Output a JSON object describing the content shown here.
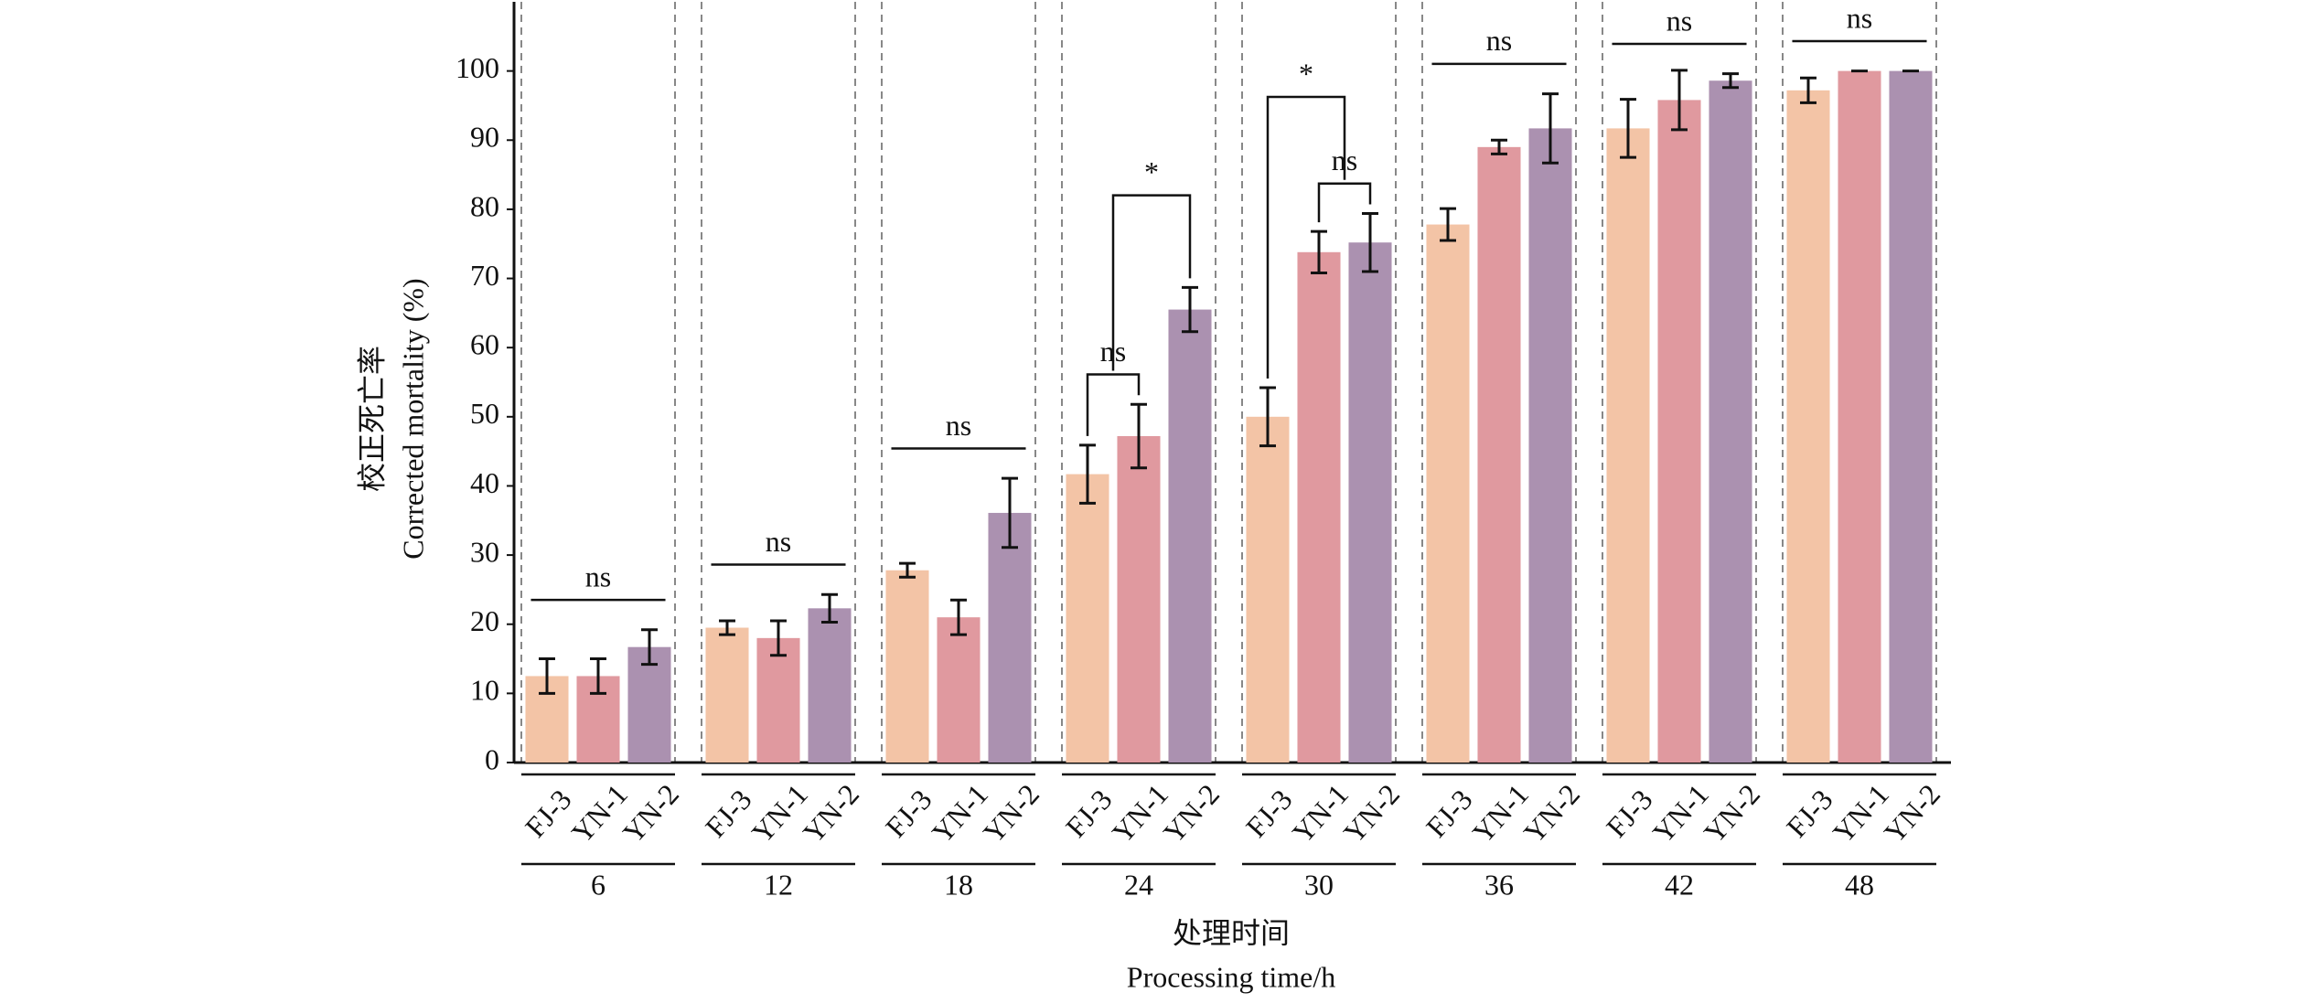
{
  "chart_data": {
    "type": "bar",
    "y_title": [
      "校正死亡率",
      "Corrected mortality (%)"
    ],
    "x_title": [
      "处理时间",
      "Processing time/h"
    ],
    "categories": [
      "6",
      "12",
      "18",
      "24",
      "30",
      "36",
      "42",
      "48"
    ],
    "series": [
      {
        "name": "FJ-3",
        "color": "#f3c4a6",
        "values": [
          12.5,
          19.5,
          27.8,
          41.7,
          50,
          77.8,
          91.7,
          97.2
        ],
        "errors": [
          2.5,
          1,
          1,
          4.2,
          4.2,
          2.3,
          4.2,
          1.8
        ]
      },
      {
        "name": "YN-1",
        "color": "#e0999f",
        "values": [
          12.5,
          18,
          21,
          47.2,
          73.8,
          89,
          95.8,
          100
        ],
        "errors": [
          2.5,
          2.5,
          2.5,
          4.6,
          3,
          1,
          4.3,
          0
        ]
      },
      {
        "name": "YN-2",
        "color": "#ab91b0",
        "values": [
          16.7,
          22.3,
          36.1,
          65.5,
          75.2,
          91.7,
          98.6,
          100
        ],
        "errors": [
          2.5,
          2,
          5,
          3.2,
          4.2,
          5,
          1,
          0
        ]
      }
    ],
    "annotations": [
      {
        "group": 0,
        "from": 0,
        "to": 2,
        "label": "ns"
      },
      {
        "group": 1,
        "from": 0,
        "to": 2,
        "label": "ns"
      },
      {
        "group": 2,
        "from": 0,
        "to": 2,
        "label": "ns"
      },
      {
        "group": 3,
        "from": 0,
        "to": 1,
        "label": "ns"
      },
      {
        "group": 3,
        "from": 0,
        "to": 2,
        "label": "*"
      },
      {
        "group": 4,
        "from": 1,
        "to": 2,
        "label": "ns"
      },
      {
        "group": 4,
        "from": 0,
        "to": 2,
        "label": "*"
      },
      {
        "group": 5,
        "from": 0,
        "to": 2,
        "label": "ns"
      },
      {
        "group": 6,
        "from": 0,
        "to": 2,
        "label": "ns"
      },
      {
        "group": 7,
        "from": 0,
        "to": 2,
        "label": "ns"
      }
    ],
    "ylim": [
      0,
      110
    ],
    "yticks": [
      0,
      10,
      20,
      30,
      40,
      50,
      60,
      70,
      80,
      90,
      100
    ]
  }
}
